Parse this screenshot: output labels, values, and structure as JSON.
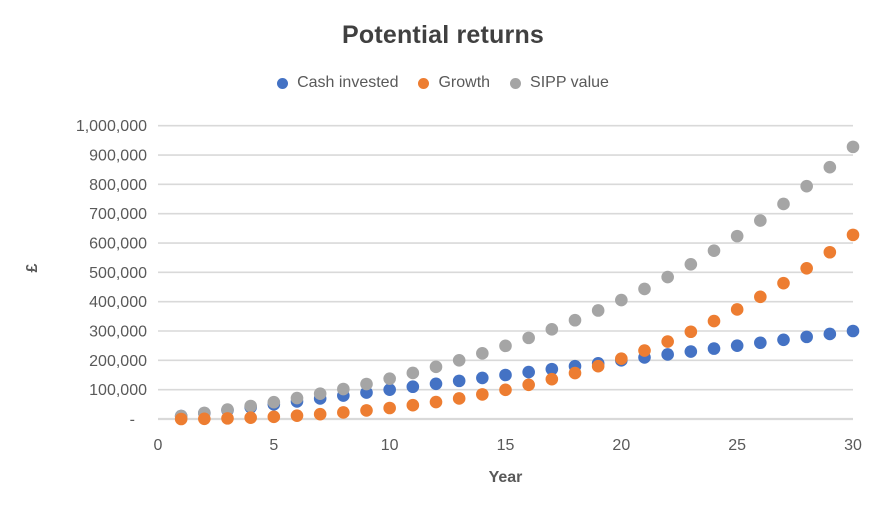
{
  "chart_data": {
    "type": "scatter",
    "title": "Potential returns",
    "xlabel": "Year",
    "ylabel": "£",
    "xlim": [
      0,
      30
    ],
    "ylim": [
      0,
      1000000
    ],
    "x_ticks": [
      0,
      5,
      10,
      15,
      20,
      25,
      30
    ],
    "y_tick_step": 100000,
    "y_tick_labels": [
      "-",
      "100,000",
      "200,000",
      "300,000",
      "400,000",
      "500,000",
      "600,000",
      "700,000",
      "800,000",
      "900,000",
      "1,000,000"
    ],
    "grid": "horizontal-only",
    "legend_position": "top-center",
    "x": [
      1,
      2,
      3,
      4,
      5,
      6,
      7,
      8,
      9,
      10,
      11,
      12,
      13,
      14,
      15,
      16,
      17,
      18,
      19,
      20,
      21,
      22,
      23,
      24,
      25,
      26,
      27,
      28,
      29,
      30
    ],
    "series": [
      {
        "name": "Cash invested",
        "color": "#4472C4",
        "values": [
          10000,
          20000,
          30000,
          40000,
          50000,
          60000,
          70000,
          80000,
          90000,
          100000,
          110000,
          120000,
          130000,
          140000,
          150000,
          160000,
          170000,
          180000,
          190000,
          200000,
          210000,
          220000,
          230000,
          240000,
          250000,
          260000,
          270000,
          280000,
          290000,
          300000
        ]
      },
      {
        "name": "Growth",
        "color": "#ED7D31",
        "values": [
          0,
          690,
          2118,
          4334,
          7393,
          11353,
          16276,
          22229,
          29283,
          37513,
          47002,
          57835,
          70106,
          83913,
          99363,
          116569,
          135652,
          156742,
          179977,
          205506,
          233486,
          264086,
          297488,
          333885,
          373483,
          416503,
          463182,
          513771,
          568542,
          627781
        ]
      },
      {
        "name": "SIPP value",
        "color": "#A5A5A5",
        "values": [
          10000,
          20690,
          32118,
          44334,
          57393,
          71353,
          86276,
          102229,
          119283,
          137513,
          157002,
          177835,
          200106,
          223913,
          249363,
          276569,
          305652,
          336742,
          369977,
          405506,
          443486,
          484086,
          527488,
          573885,
          623483,
          676503,
          733182,
          793771,
          858542,
          927781
        ]
      }
    ],
    "draw_order": [
      0,
      2,
      1
    ]
  },
  "colors": {
    "background": "#FFFFFF",
    "title_text": "#404040",
    "axis_text": "#595959",
    "gridline": "#D9D9D9",
    "cash_invested": "#4472C4",
    "growth": "#ED7D31",
    "sipp_value": "#A5A5A5"
  }
}
